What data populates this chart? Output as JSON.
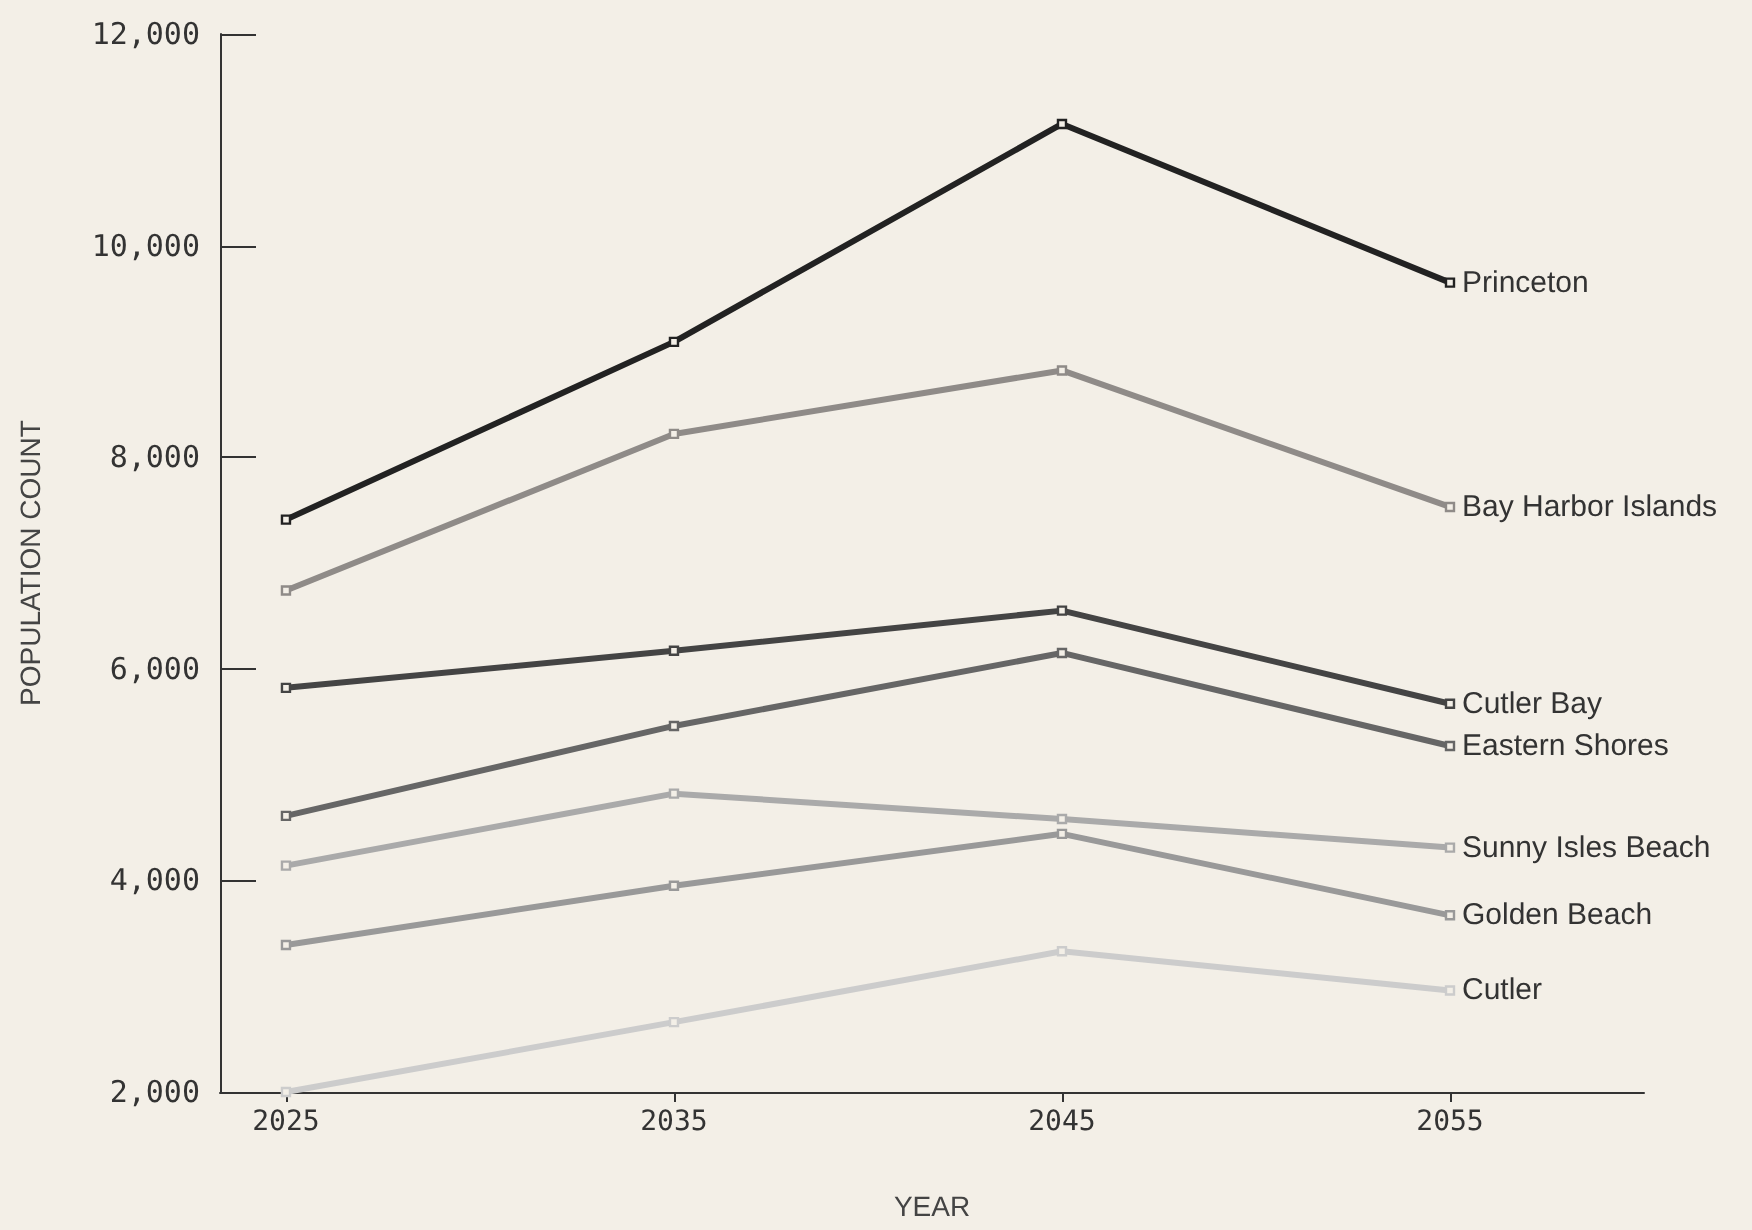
{
  "chart_data": {
    "type": "line",
    "xlabel": "YEAR",
    "ylabel": "POPULATION COUNT",
    "x": [
      2025,
      2035,
      2045,
      2055
    ],
    "xlim": [
      2023.3,
      2060
    ],
    "xticks": [
      2025,
      2035,
      2045,
      2055
    ],
    "ylim": [
      2000,
      12000
    ],
    "yticks": [
      {
        "value": 2000,
        "label": "2,000"
      },
      {
        "value": 4000,
        "label": "4,000"
      },
      {
        "value": 6000,
        "label": "6,000"
      },
      {
        "value": 8000,
        "label": "8,000"
      },
      {
        "value": 10000,
        "label": "10,000"
      },
      {
        "value": 12000,
        "label": "12,000"
      }
    ],
    "grid": false,
    "legend": false,
    "marker": "square",
    "line_style": "solid",
    "series": [
      {
        "name": "Princeton",
        "color": "#222222",
        "values": [
          7410,
          9090,
          11150,
          9650
        ]
      },
      {
        "name": "Bay Harbor Islands",
        "color": "#8f8b88",
        "values": [
          6740,
          8220,
          8820,
          7530
        ]
      },
      {
        "name": "Cutler Bay",
        "color": "#444444",
        "values": [
          5820,
          6170,
          6550,
          5670
        ]
      },
      {
        "name": "Eastern Shores",
        "color": "#666666",
        "values": [
          4610,
          5460,
          6150,
          5270
        ]
      },
      {
        "name": "Sunny Isles Beach",
        "color": "#aaaaaa",
        "values": [
          4140,
          4820,
          4580,
          4310
        ]
      },
      {
        "name": "Golden Beach",
        "color": "#999999",
        "values": [
          3390,
          3950,
          4440,
          3670
        ]
      },
      {
        "name": "Cutler",
        "color": "#cccccc",
        "values": [
          2000,
          2660,
          3330,
          2960
        ]
      }
    ]
  }
}
